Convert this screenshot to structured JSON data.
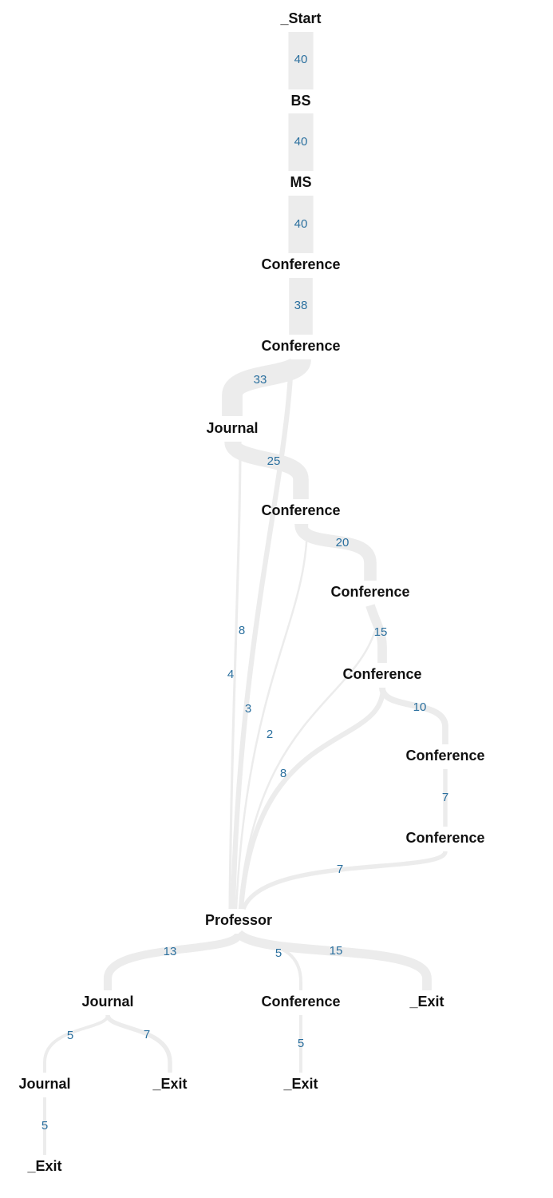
{
  "colors": {
    "link": "#ececec",
    "link_label": "#2a6f9e",
    "node_label": "#111111",
    "background": "#ffffff"
  },
  "nodes": [
    {
      "id": "n0",
      "label": "_Start"
    },
    {
      "id": "n1",
      "label": "BS"
    },
    {
      "id": "n2",
      "label": "MS"
    },
    {
      "id": "n3",
      "label": "Conference"
    },
    {
      "id": "n4",
      "label": "Conference"
    },
    {
      "id": "n5",
      "label": "Journal"
    },
    {
      "id": "n6",
      "label": "Conference"
    },
    {
      "id": "n7",
      "label": "Conference"
    },
    {
      "id": "n8",
      "label": "Conference"
    },
    {
      "id": "n9",
      "label": "Conference"
    },
    {
      "id": "n10",
      "label": "Conference"
    },
    {
      "id": "n11",
      "label": "Professor"
    },
    {
      "id": "n12",
      "label": "Journal"
    },
    {
      "id": "n13",
      "label": "Conference"
    },
    {
      "id": "n14",
      "label": "_Exit"
    },
    {
      "id": "n15",
      "label": "Journal"
    },
    {
      "id": "n16",
      "label": "_Exit"
    },
    {
      "id": "n17",
      "label": "_Exit"
    },
    {
      "id": "n18",
      "label": "_Exit"
    }
  ],
  "links": [
    {
      "source": "n0",
      "target": "n1",
      "value": 40
    },
    {
      "source": "n1",
      "target": "n2",
      "value": 40
    },
    {
      "source": "n2",
      "target": "n3",
      "value": 40
    },
    {
      "source": "n3",
      "target": "n4",
      "value": 38
    },
    {
      "source": "n4",
      "target": "n5",
      "value": 33
    },
    {
      "source": "n5",
      "target": "n6",
      "value": 25
    },
    {
      "source": "n6",
      "target": "n7",
      "value": 20
    },
    {
      "source": "n7",
      "target": "n8",
      "value": 15
    },
    {
      "source": "n8",
      "target": "n9",
      "value": 10
    },
    {
      "source": "n9",
      "target": "n10",
      "value": 7
    },
    {
      "source": "n10",
      "target": "n11",
      "value": 7
    },
    {
      "source": "n4",
      "target": "n11",
      "value": 8
    },
    {
      "source": "n5",
      "target": "n11",
      "value": 4
    },
    {
      "source": "n6",
      "target": "n11",
      "value": 3
    },
    {
      "source": "n7",
      "target": "n11",
      "value": 2
    },
    {
      "source": "n8",
      "target": "n11",
      "value": 8
    },
    {
      "source": "n11",
      "target": "n12",
      "value": 13
    },
    {
      "source": "n11",
      "target": "n13",
      "value": 5
    },
    {
      "source": "n11",
      "target": "n14",
      "value": 15
    },
    {
      "source": "n12",
      "target": "n15",
      "value": 5
    },
    {
      "source": "n12",
      "target": "n16",
      "value": 7
    },
    {
      "source": "n13",
      "target": "n17",
      "value": 5
    },
    {
      "source": "n15",
      "target": "n18",
      "value": 5
    }
  ]
}
